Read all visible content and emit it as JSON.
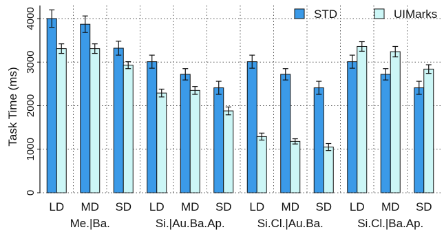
{
  "chart_data": {
    "type": "bar",
    "ylabel": "Task Time (ms)",
    "xlabel": "",
    "ylim": [
      0,
      4300
    ],
    "yticks": [
      0,
      1000,
      2000,
      3000,
      4000
    ],
    "grid": "horizontal dotted",
    "legend_position": "top-right",
    "categories": [
      "LD",
      "MD",
      "SD",
      "LD",
      "MD",
      "SD",
      "LD",
      "MD",
      "SD",
      "LD",
      "MD",
      "SD"
    ],
    "groups": [
      {
        "label": "Me.|Ba.",
        "span": [
          0,
          2
        ]
      },
      {
        "label": "Si.|Au.Ba.Ap.",
        "span": [
          3,
          5
        ]
      },
      {
        "label": "Si.Cl.|Au.Ba.",
        "span": [
          6,
          8
        ]
      },
      {
        "label": "Si.Cl.|Ba.Ap.",
        "span": [
          9,
          11
        ]
      }
    ],
    "series": [
      {
        "name": "STD",
        "color": "#3b9ae8",
        "values": [
          4000,
          3870,
          3320,
          3010,
          2720,
          2410,
          3010,
          2720,
          2410,
          3010,
          2720,
          2410
        ],
        "errors": [
          200,
          190,
          160,
          150,
          130,
          150,
          150,
          130,
          150,
          150,
          130,
          150
        ]
      },
      {
        "name": "UIMarks",
        "color": "#ccf6f6",
        "values": [
          3310,
          3310,
          2930,
          2290,
          2350,
          1880,
          1290,
          1180,
          1050,
          3360,
          3240,
          2840
        ],
        "errors": [
          110,
          110,
          80,
          90,
          90,
          90,
          80,
          60,
          80,
          110,
          120,
          100
        ]
      }
    ]
  }
}
